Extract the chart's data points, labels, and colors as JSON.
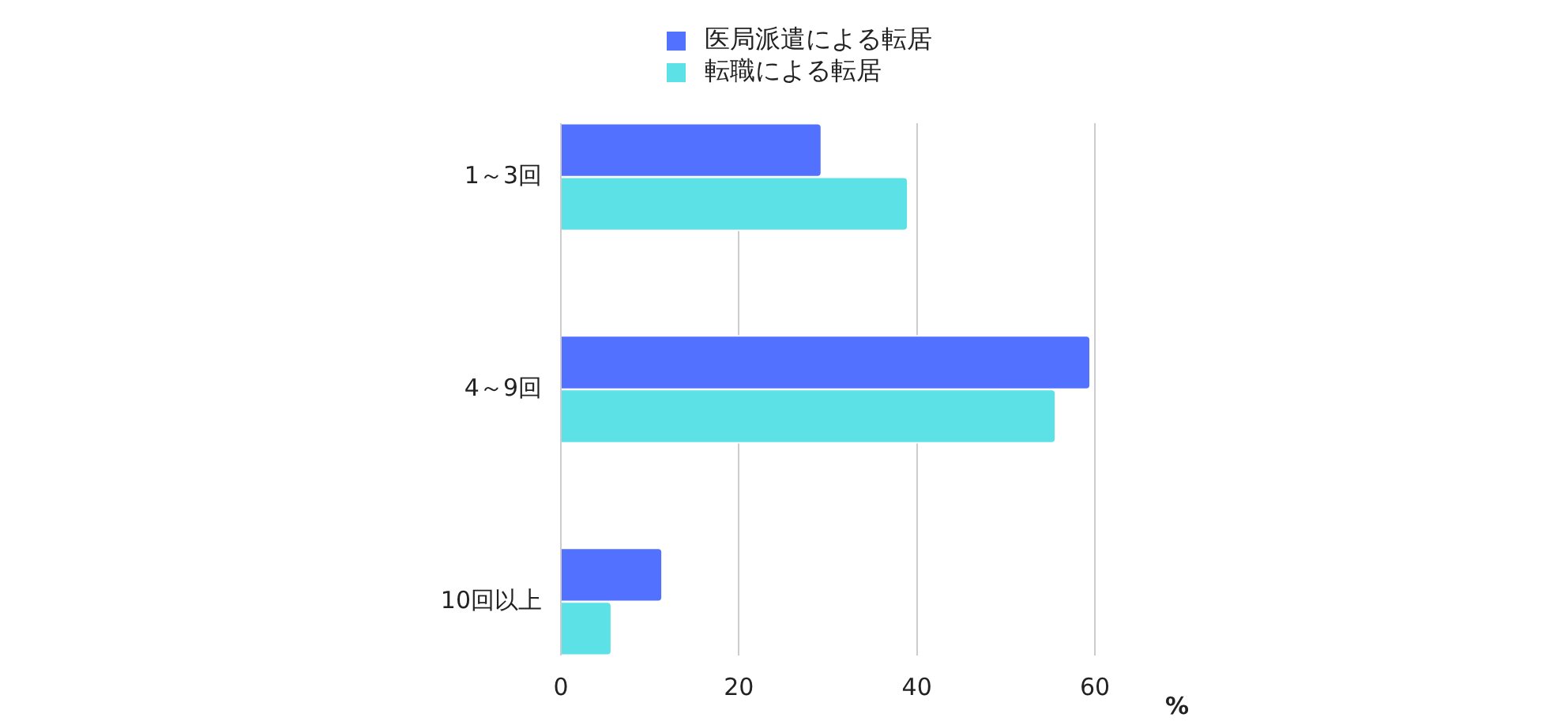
{
  "chart_data": {
    "type": "bar",
    "orientation": "horizontal",
    "categories": [
      "1～3回",
      "4～9回",
      "10回以上"
    ],
    "series": [
      {
        "name": "医局派遣による転居",
        "color": "#5271ff",
        "values": [
          29.3,
          59.5,
          11.4
        ]
      },
      {
        "name": "転職による転居",
        "color": "#5ce1e6",
        "values": [
          39.0,
          55.6,
          5.7
        ]
      }
    ],
    "xlabel": "%",
    "xlim": [
      0,
      60
    ],
    "xticks": [
      0,
      20,
      40,
      60
    ],
    "grid": "x",
    "legend": "top"
  }
}
